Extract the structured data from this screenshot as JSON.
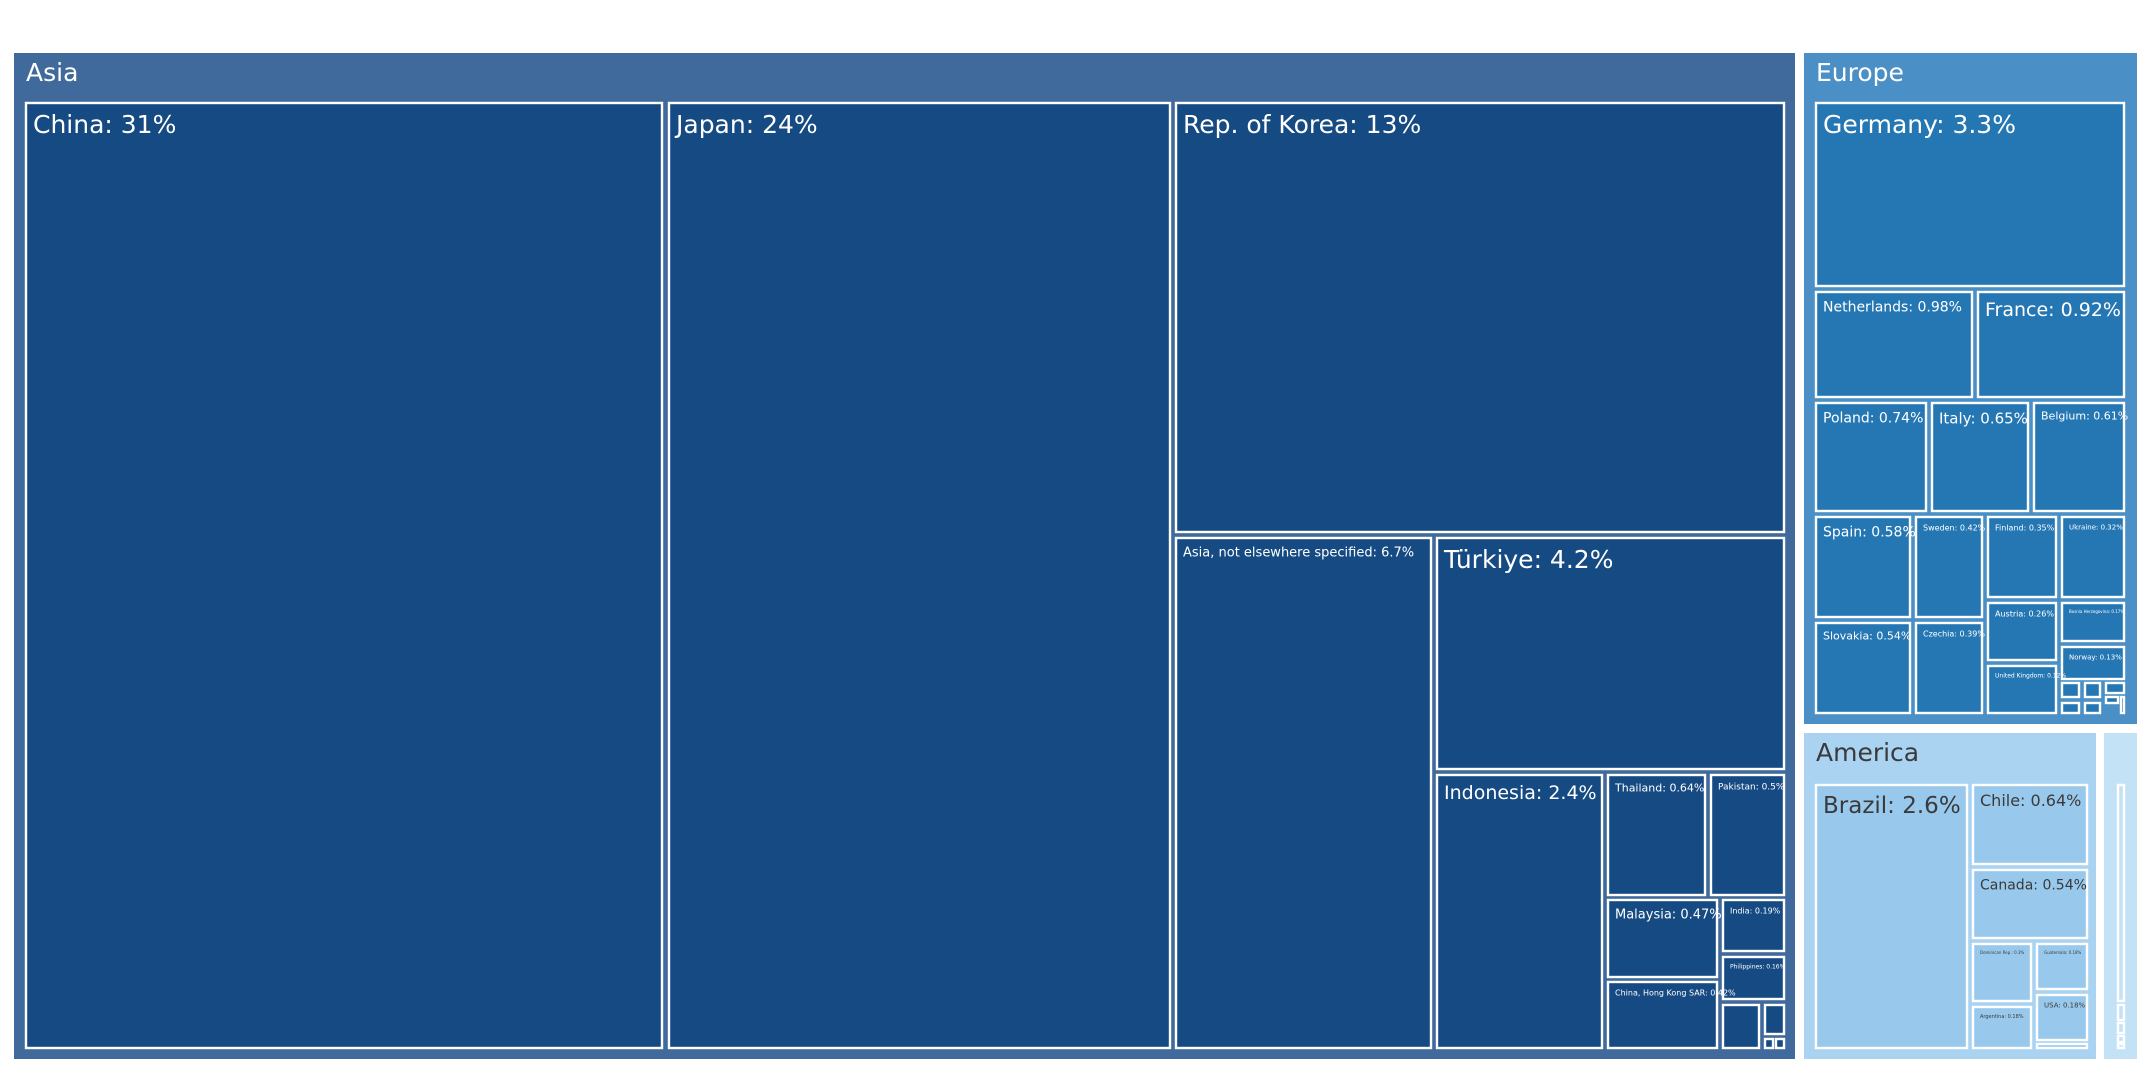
{
  "chart_data": {
    "type": "treemap",
    "colors": {
      "region_header": {
        "Asia": "#416a9c",
        "Europe": "#4a8fc6",
        "America": "#a9d3f1",
        "Other": "#c3e2f6"
      },
      "leaf": {
        "Asia": "#164a82",
        "Europe": "#2577b4",
        "America": "#98c9ec",
        "Other": "#c3e2f6"
      },
      "border": "#ffffff",
      "text_dark_bg": "#ffffff",
      "text_light_bg": "#3a3a3a"
    },
    "regions": [
      {
        "name": "Asia",
        "items": [
          {
            "label": "China: 31%",
            "value": 31
          },
          {
            "label": "Japan: 24%",
            "value": 24
          },
          {
            "label": "Rep. of Korea: 13%",
            "value": 13
          },
          {
            "label": "Asia, not elsewhere specified: 6.7%",
            "value": 6.7
          },
          {
            "label": "Türkiye: 4.2%",
            "value": 4.2
          },
          {
            "label": "Indonesia: 2.4%",
            "value": 2.4
          },
          {
            "label": "Thailand: 0.64%",
            "value": 0.64
          },
          {
            "label": "Pakistan: 0.5%",
            "value": 0.5
          },
          {
            "label": "Malaysia: 0.47%",
            "value": 0.47
          },
          {
            "label": "India: 0.19%",
            "value": 0.19
          },
          {
            "label": "Philippines: 0.16%",
            "value": 0.16
          },
          {
            "label": "China, Hong Kong SAR: 0.42%",
            "value": 0.42
          },
          {
            "label": "",
            "value": 0.08
          },
          {
            "label": "",
            "value": 0.06
          },
          {
            "label": "",
            "value": 0.03
          },
          {
            "label": "",
            "value": 0.03
          }
        ]
      },
      {
        "name": "Europe",
        "items": [
          {
            "label": "Germany: 3.3%",
            "value": 3.3
          },
          {
            "label": "Netherlands: 0.98%",
            "value": 0.98
          },
          {
            "label": "France: 0.92%",
            "value": 0.92
          },
          {
            "label": "Poland: 0.74%",
            "value": 0.74
          },
          {
            "label": "Italy: 0.65%",
            "value": 0.65
          },
          {
            "label": "Belgium: 0.61%",
            "value": 0.61
          },
          {
            "label": "Spain: 0.58%",
            "value": 0.58
          },
          {
            "label": "Sweden: 0.42%",
            "value": 0.42
          },
          {
            "label": "Finland: 0.35%",
            "value": 0.35
          },
          {
            "label": "Ukraine: 0.32%",
            "value": 0.32
          },
          {
            "label": "Slovakia: 0.54%",
            "value": 0.54
          },
          {
            "label": "Czechia: 0.39%",
            "value": 0.39
          },
          {
            "label": "Austria: 0.26%",
            "value": 0.26
          },
          {
            "label": "Bosnia Herzegovina: 0.17%",
            "value": 0.17
          },
          {
            "label": "Norway: 0.13%",
            "value": 0.13
          },
          {
            "label": "United Kingdom: 0.12%",
            "value": 0.12
          },
          {
            "label": "",
            "value": 0.04
          },
          {
            "label": "",
            "value": 0.04
          },
          {
            "label": "",
            "value": 0.04
          },
          {
            "label": "",
            "value": 0.03
          },
          {
            "label": "",
            "value": 0.03
          },
          {
            "label": "",
            "value": 0.03
          },
          {
            "label": "",
            "value": 0.02
          }
        ]
      },
      {
        "name": "America",
        "items": [
          {
            "label": "Brazil: 2.6%",
            "value": 2.6
          },
          {
            "label": "Chile: 0.64%",
            "value": 0.64
          },
          {
            "label": "Canada: 0.54%",
            "value": 0.54
          },
          {
            "label": "Dominican Rep.: 0.3%",
            "value": 0.3
          },
          {
            "label": "Guatemala: 0.18%",
            "value": 0.18
          },
          {
            "label": "Argentina: 0.18%",
            "value": 0.18
          },
          {
            "label": "USA: 0.18%",
            "value": 0.18
          },
          {
            "label": "",
            "value": 0.03
          }
        ]
      },
      {
        "name": "",
        "items": [
          {
            "label": "",
            "value": 0.3
          },
          {
            "label": "",
            "value": 0.02
          },
          {
            "label": "",
            "value": 0.02
          },
          {
            "label": "",
            "value": 0.02
          },
          {
            "label": "",
            "value": 0.01
          }
        ]
      }
    ]
  }
}
